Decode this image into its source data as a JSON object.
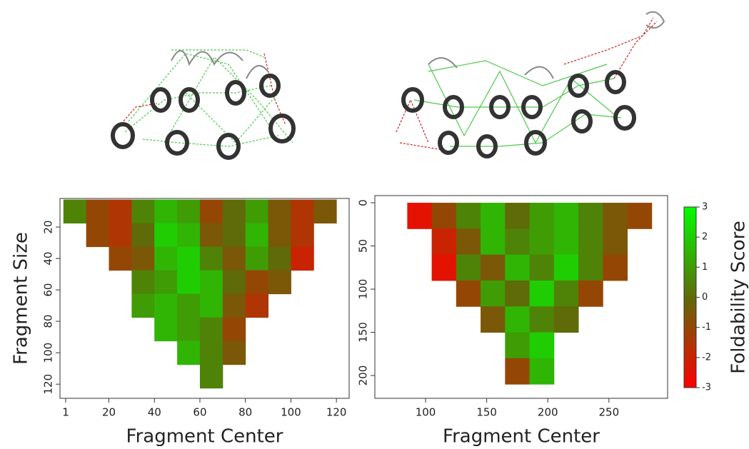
{
  "chart_data": [
    {
      "type": "heatmap",
      "xlabel": "Fragment Center",
      "ylabel": "Fragment Size",
      "xlim": [
        -1.5,
        125.6
      ],
      "ylim": [
        1.8,
        129
      ],
      "xticks": [
        1,
        20,
        40,
        60,
        80,
        100,
        120
      ],
      "yticks": [
        20,
        40,
        60,
        80,
        100,
        120
      ],
      "x": [
        5,
        15,
        25,
        35,
        45,
        55,
        65,
        75,
        85,
        95,
        105,
        115,
        125
      ],
      "y": [
        10,
        25,
        40,
        55,
        70,
        85,
        100,
        115
      ],
      "z": [
        [
          0.5,
          -1,
          -1.5,
          0.5,
          1.5,
          1,
          -1,
          0,
          1,
          -0.5,
          -1.5,
          -0.5,
          null
        ],
        [
          null,
          -1,
          -1.5,
          0,
          2,
          1.5,
          -0.5,
          0,
          1.5,
          -0.5,
          -1.5,
          null,
          null
        ],
        [
          null,
          null,
          -1,
          -0.5,
          1.5,
          2,
          0.5,
          -0.5,
          1,
          0,
          -2,
          null,
          null
        ],
        [
          null,
          null,
          null,
          0.5,
          1,
          2,
          1.5,
          0,
          -1,
          -0.5,
          null,
          null,
          null
        ],
        [
          null,
          null,
          null,
          1,
          1.5,
          1,
          1.5,
          -0.5,
          -1.5,
          null,
          null,
          null,
          null
        ],
        [
          null,
          null,
          null,
          null,
          1.5,
          1,
          0.5,
          -1,
          null,
          null,
          null,
          null,
          null
        ],
        [
          null,
          null,
          null,
          null,
          null,
          1.5,
          0.5,
          -0.5,
          null,
          null,
          null,
          null,
          null
        ],
        [
          null,
          null,
          null,
          null,
          null,
          null,
          0.5,
          null,
          null,
          null,
          null,
          null,
          null
        ]
      ]
    },
    {
      "type": "heatmap",
      "xlabel": "Fragment Center",
      "xlim": [
        58.5,
        298
      ],
      "ylim": [
        -8.3,
        226.4
      ],
      "xticks": [
        100,
        150,
        200,
        250
      ],
      "yticks": [
        0,
        50,
        100,
        150,
        200
      ],
      "x": [
        75,
        95,
        115,
        135,
        155,
        175,
        195,
        215,
        235,
        255,
        275,
        295
      ],
      "y": [
        15,
        45,
        75,
        105,
        135,
        165,
        195
      ],
      "z": [
        [
          null,
          -2.5,
          -1,
          0.5,
          1.5,
          0,
          1,
          1.5,
          0.5,
          -0.5,
          -1,
          null
        ],
        [
          null,
          null,
          -2,
          -0.5,
          1.5,
          0.5,
          1,
          1.5,
          0.5,
          -0.5,
          null,
          null
        ],
        [
          null,
          null,
          -2.5,
          0.5,
          -0.5,
          1.5,
          0.5,
          2,
          0.5,
          -1,
          null,
          null
        ],
        [
          null,
          null,
          null,
          -1,
          1,
          0,
          2,
          0.5,
          -1,
          null,
          null,
          null
        ],
        [
          null,
          null,
          null,
          null,
          -0.5,
          1.5,
          0.5,
          0,
          null,
          null,
          null,
          null
        ],
        [
          null,
          null,
          null,
          null,
          null,
          1,
          2,
          null,
          null,
          null,
          null,
          null
        ],
        [
          null,
          null,
          null,
          null,
          null,
          -1,
          1.5,
          null,
          null,
          null,
          null,
          null
        ]
      ],
      "colorbar": {
        "label": "Foldability Score",
        "zlim": [
          -3,
          3
        ],
        "zticks": [
          -3,
          -2,
          -1,
          0,
          1,
          2,
          3
        ],
        "colors": [
          "#ff0000",
          "#5f6a08",
          "#00ff00"
        ]
      }
    }
  ]
}
